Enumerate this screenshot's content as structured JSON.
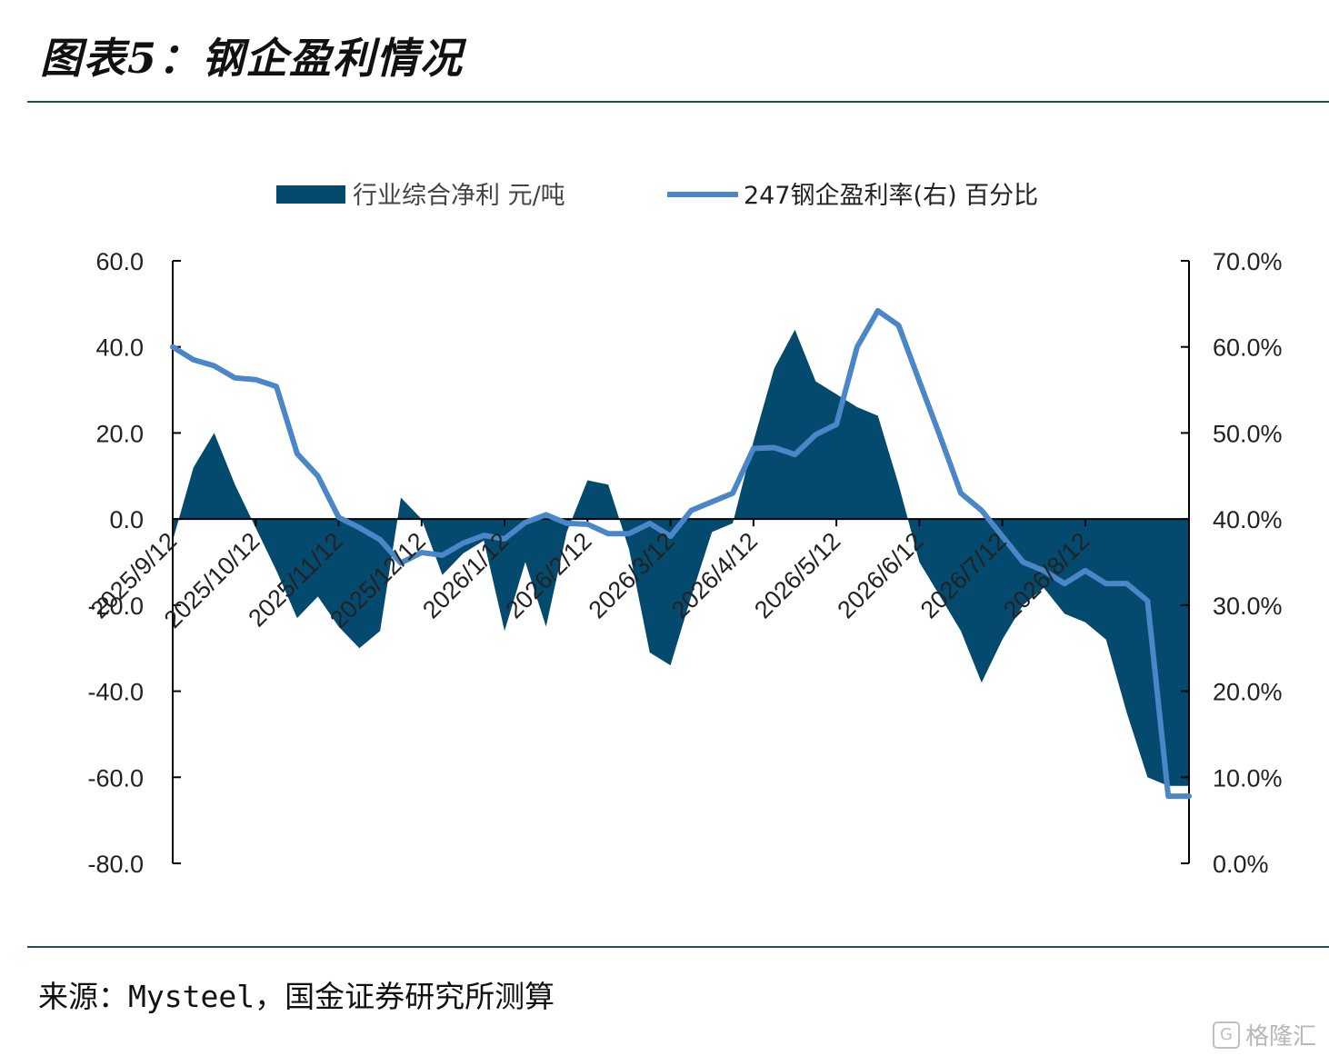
{
  "page": {
    "title": "图表5：钢企盈利情况",
    "source": "来源：Mysteel，国金证券研究所测算",
    "watermark": "格隆汇",
    "watermark_logo": "G"
  },
  "colors": {
    "area": "#034a6e",
    "line": "#4a86c8",
    "rule": "#1f4e5f",
    "axis": "#000000"
  },
  "chart_data": {
    "type": "area",
    "x": [
      "2025/9/12",
      "2025/9/19",
      "2025/9/26",
      "2025/10/3",
      "2025/10/12",
      "2025/10/19",
      "2025/10/26",
      "2025/11/2",
      "2025/11/12",
      "2025/11/19",
      "2025/11/26",
      "2025/12/3",
      "2025/12/12",
      "2025/12/19",
      "2025/12/26",
      "2026/1/2",
      "2026/1/12",
      "2026/1/19",
      "2026/1/26",
      "2026/2/2",
      "2026/2/12",
      "2026/2/19",
      "2026/2/26",
      "2026/3/5",
      "2026/3/12",
      "2026/3/19",
      "2026/3/26",
      "2026/4/2",
      "2026/4/12",
      "2026/4/19",
      "2026/4/26",
      "2026/5/3",
      "2026/5/12",
      "2026/5/19",
      "2026/5/26",
      "2026/6/2",
      "2026/6/12",
      "2026/6/19",
      "2026/6/26",
      "2026/7/3",
      "2026/7/12",
      "2026/7/19",
      "2026/7/26",
      "2026/8/2",
      "2026/8/12",
      "2026/8/19",
      "2026/8/26",
      "2026/9/2",
      "2026/9/9",
      "2026/9/16"
    ],
    "x_tick_labels": [
      "2025/9/12",
      "2025/10/12",
      "2025/11/12",
      "2025/12/12",
      "2026/1/12",
      "2026/2/12",
      "2026/3/12",
      "2026/4/12",
      "2026/5/12",
      "2026/6/12",
      "2026/7/12",
      "2026/8/12"
    ],
    "x_tick_indices": [
      0,
      4,
      8,
      12,
      16,
      20,
      24,
      28,
      32,
      36,
      40,
      44
    ],
    "series": [
      {
        "name": "行业综合净利 元/吨",
        "axis": "left",
        "type": "area",
        "values": [
          -5.0,
          12.0,
          20.0,
          8.0,
          -2.0,
          -12.0,
          -23.0,
          -18.0,
          -25.0,
          -30.0,
          -26.0,
          5.0,
          0.0,
          -13.0,
          -8.0,
          -5.0,
          -26.0,
          -10.0,
          -25.0,
          -3.0,
          9.0,
          8.0,
          -7.0,
          -31.0,
          -34.0,
          -18.0,
          -3.0,
          -1.0,
          18.0,
          35.0,
          44.0,
          32.0,
          29.0,
          26.0,
          24.0,
          8.0,
          -10.0,
          -18.0,
          -26.0,
          -38.0,
          -28.0,
          -20.0,
          -16.0,
          -22.0,
          -24.0,
          -28.0,
          -45.0,
          -60.0,
          -62.0,
          -62.0
        ]
      },
      {
        "name": "247钢企盈利率(右) 百分比",
        "axis": "right",
        "type": "line",
        "values": [
          60.0,
          58.5,
          57.8,
          56.4,
          56.2,
          55.4,
          47.6,
          45.0,
          40.2,
          39.0,
          37.6,
          34.9,
          36.1,
          35.8,
          37.2,
          38.1,
          37.7,
          39.6,
          40.5,
          39.5,
          39.4,
          38.3,
          38.3,
          39.5,
          38.0,
          41.0,
          42.0,
          43.0,
          48.2,
          48.3,
          47.5,
          49.8,
          51.0,
          60.0,
          64.2,
          62.5,
          56.0,
          49.6,
          43.0,
          41.0,
          38.0,
          35.0,
          34.0,
          32.5,
          34.0,
          32.5,
          32.5,
          30.5,
          7.8,
          7.8
        ]
      }
    ],
    "y_left": {
      "min": -80,
      "max": 60,
      "ticks": [
        "60.0",
        "40.0",
        "20.0",
        "0.0",
        "-20.0",
        "-40.0",
        "-60.0",
        "-80.0"
      ],
      "tick_values": [
        60,
        40,
        20,
        0,
        -20,
        -40,
        -60,
        -80
      ]
    },
    "y_right": {
      "min": 0,
      "max": 70,
      "ticks": [
        "70.0%",
        "60.0%",
        "50.0%",
        "40.0%",
        "30.0%",
        "20.0%",
        "10.0%",
        "0.0%"
      ],
      "tick_values": [
        70,
        60,
        50,
        40,
        30,
        20,
        10,
        0
      ]
    },
    "legend_position": "top-center",
    "grid": false
  }
}
